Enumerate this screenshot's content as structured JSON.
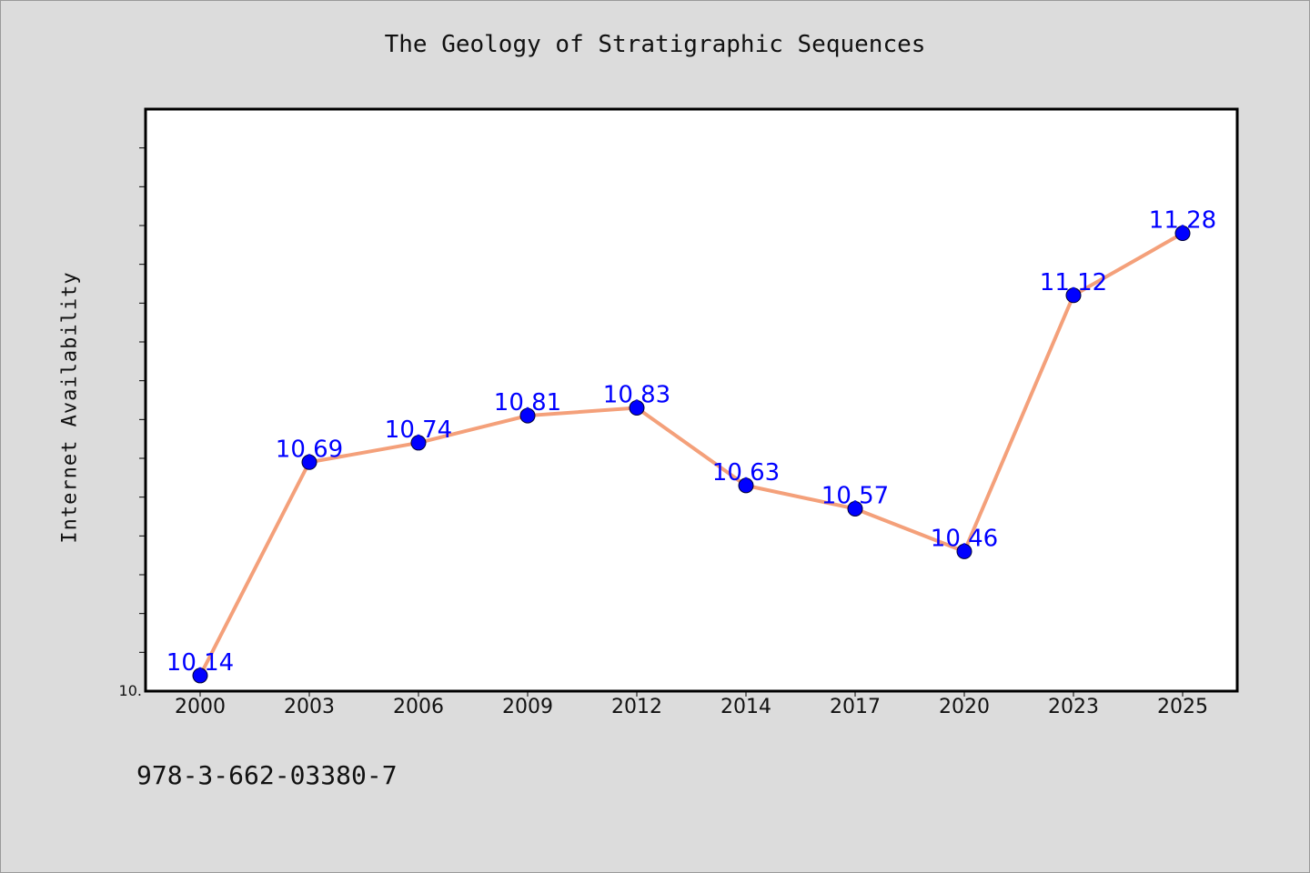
{
  "chart_data": {
    "type": "line",
    "title": "The Geology of Stratigraphic Sequences",
    "xlabel": "",
    "ylabel": "Internet Availability",
    "categories": [
      "2000",
      "2003",
      "2006",
      "2009",
      "2012",
      "2014",
      "2017",
      "2020",
      "2023",
      "2025"
    ],
    "series": [
      {
        "values": [
          10.14,
          10.69,
          10.74,
          10.81,
          10.83,
          10.63,
          10.57,
          10.46,
          11.12,
          11.28
        ],
        "labels": [
          "10.14",
          "10.69",
          "10.74",
          "10.81",
          "10.83",
          "10.63",
          "10.57",
          "10.46",
          "11.12",
          "11.28"
        ]
      }
    ],
    "ylim": [
      10.1,
      11.6
    ],
    "y_tick_labels": [
      "10."
    ],
    "grid": false,
    "line_color": "#f4a07a",
    "marker_color": "#0000ff",
    "label_color": "#0000ff"
  },
  "footer": {
    "isbn": "978-3-662-03380-7"
  }
}
